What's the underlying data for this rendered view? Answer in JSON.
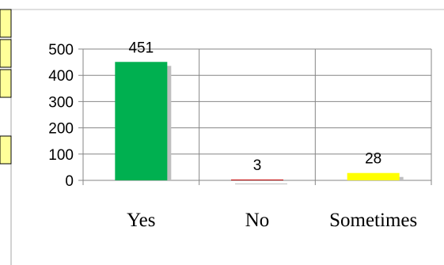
{
  "chart_data": {
    "type": "bar",
    "categories": [
      "Yes",
      "No",
      "Sometimes"
    ],
    "values": [
      451,
      3,
      28
    ],
    "data_labels": [
      "451",
      "3",
      "28"
    ],
    "colors": [
      "#00b050",
      "#c00000",
      "#ffff00"
    ],
    "ylim": [
      0,
      500
    ],
    "yticks": [
      "0",
      "100",
      "200",
      "300",
      "400",
      "500"
    ],
    "grid": true,
    "legend": "none",
    "title": "",
    "xlabel": "",
    "ylabel": ""
  }
}
